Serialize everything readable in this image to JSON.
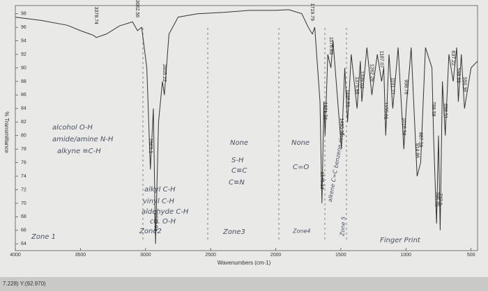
{
  "chart_data": {
    "type": "line",
    "ylabel": "% Transmittance",
    "xlabel": "Wavenumbers (cm-1)",
    "xlim": [
      4000,
      450
    ],
    "ylim": [
      63,
      99
    ],
    "xticks": [
      4000,
      3500,
      3000,
      2500,
      2000,
      1500,
      1000,
      500
    ],
    "yticks": [
      64,
      66,
      68,
      70,
      72,
      74,
      76,
      78,
      80,
      82,
      84,
      86,
      88,
      90,
      92,
      94,
      96,
      98
    ],
    "x": [
      4000,
      3800,
      3600,
      3500,
      3400,
      3378,
      3300,
      3200,
      3100,
      3062,
      3030,
      2990,
      2963,
      2940,
      2923,
      2900,
      2870,
      2855,
      2820,
      2750,
      2600,
      2400,
      2200,
      2000,
      1900,
      1800,
      1750,
      1719,
      1700,
      1660,
      1645,
      1630,
      1621,
      1600,
      1576,
      1560,
      1495,
      1470,
      1448,
      1420,
      1375,
      1350,
      1339,
      1300,
      1262,
      1220,
      1187,
      1170,
      1155,
      1130,
      1101,
      1060,
      1016,
      998,
      960,
      914,
      887,
      850,
      800,
      788,
      765,
      750,
      737,
      720,
      698,
      670,
      637,
      610,
      598,
      575,
      550,
      500,
      450
    ],
    "series": [
      {
        "name": "spectrum",
        "color": "#333333",
        "values": [
          97.5,
          97,
          96.3,
          95.5,
          94.8,
          94.5,
          95,
          96.2,
          96.8,
          95.5,
          96,
          90,
          75,
          84,
          64,
          82,
          88,
          86,
          95,
          97.5,
          98,
          98.2,
          98.5,
          98.5,
          98.6,
          98,
          96,
          95,
          96,
          85,
          70,
          85,
          80,
          92,
          90,
          94,
          78,
          90,
          82,
          92,
          84,
          91,
          85,
          93,
          86,
          92,
          88,
          90,
          80,
          92,
          84,
          93,
          78,
          84,
          93,
          74,
          76,
          93,
          90,
          80,
          67,
          80,
          66,
          88,
          80,
          92,
          88,
          93,
          85,
          92,
          84,
          90,
          91
        ]
      }
    ],
    "peak_labels": [
      3378.74,
      3062.56,
      2963.1,
      2923.03,
      2855.22,
      1719.79,
      1645.13,
      1621.74,
      1576.63,
      1495.31,
      1448.83,
      1375.96,
      1339.02,
      1262.26,
      1187.07,
      1155.61,
      1101.21,
      1016.34,
      998.76,
      914.86,
      887.59,
      788.58,
      765.32,
      737.9,
      698.51,
      637.22,
      598.69,
      550.36
    ],
    "annotations": [
      "alcohol O-H",
      "amide/amine N-H",
      "alkyne ≡C-H",
      "Zone 1",
      "alkyl C-H",
      "vinyl C-H",
      "aldehyde C-H",
      "co. O-H",
      "Zone2",
      "None",
      "S-H",
      "C≡C",
      "C≡N",
      "Zone3",
      "None",
      "C=O",
      "Zone4",
      "alkene C=C benzene ring",
      "Zone 5",
      "Finger Print"
    ],
    "status": "7.228) Y:(92.970)"
  }
}
